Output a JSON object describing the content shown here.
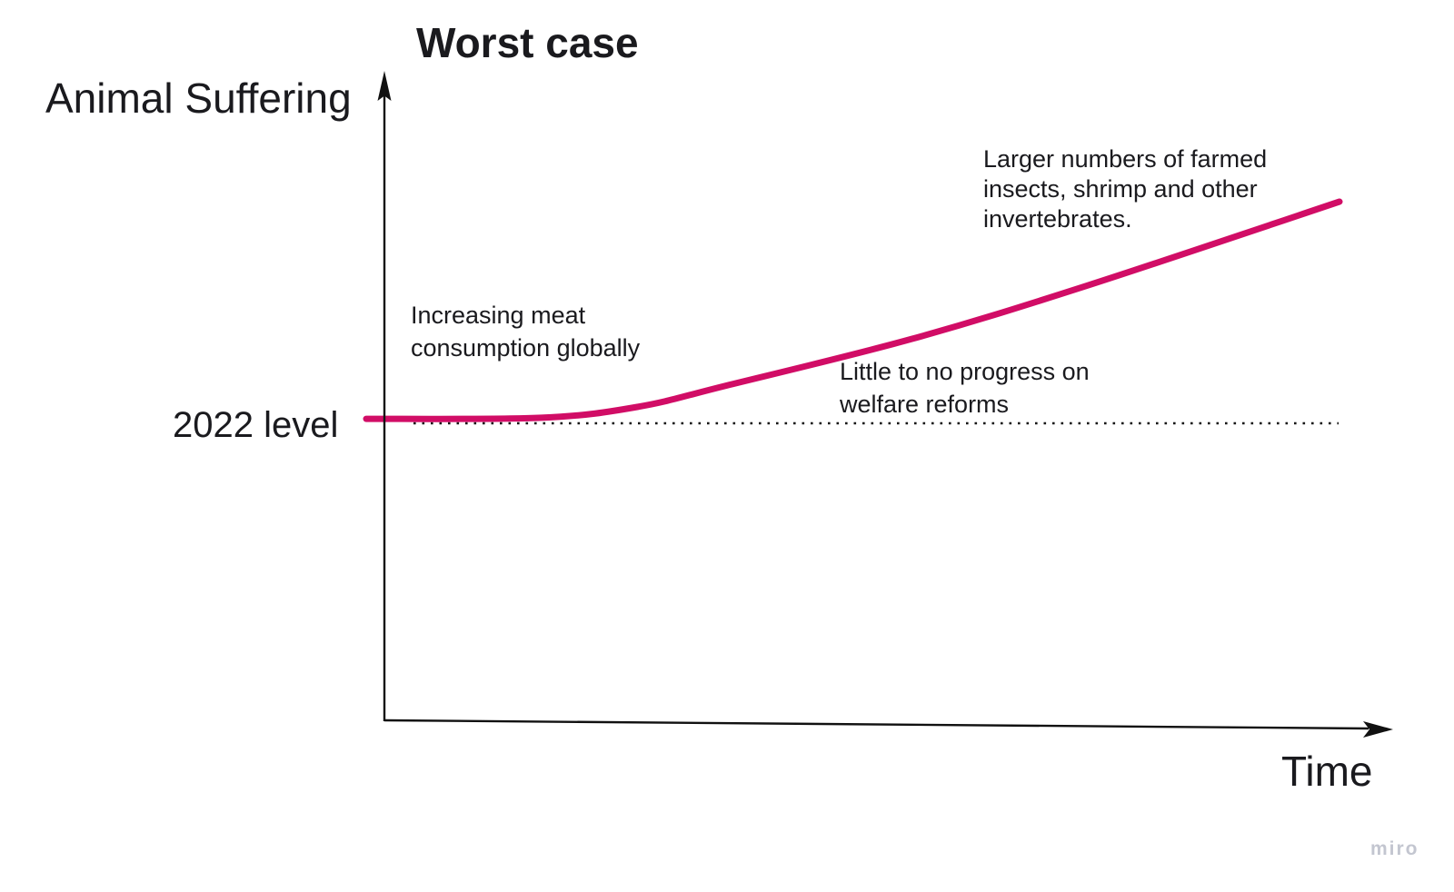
{
  "page": {
    "title": "Worst case",
    "y_axis_label": "Animal Suffering",
    "x_axis_label": "Time",
    "baseline_label": "2022 level",
    "watermark": "miro"
  },
  "annotations": {
    "meat": {
      "lines": [
        "Increasing meat",
        "consumption globally"
      ]
    },
    "welfare": {
      "lines": [
        "Little to no progress on",
        "welfare reforms"
      ]
    },
    "invertebrates": {
      "lines": [
        "Larger numbers of farmed",
        "insects, shrimp and other",
        "invertebrates."
      ]
    }
  },
  "colors": {
    "curve": "#d10d66",
    "axis": "#111111",
    "dotted_line": "#161616",
    "text": "#1a1a1e",
    "watermark": "#c3c6d0"
  },
  "chart_data": {
    "type": "line",
    "title": "Worst case",
    "xlabel": "Time",
    "ylabel": "Animal Suffering",
    "grid": false,
    "legend": false,
    "x_axis": {
      "ticks": "none",
      "description": "conceptual time axis starting at 2022, arrowhead pointing right"
    },
    "y_axis": {
      "ticks": "none",
      "description": "conceptual animal-suffering axis, arrowhead pointing up",
      "reference_line": {
        "label": "2022 level",
        "value": 1.0,
        "style": "dotted horizontal"
      }
    },
    "series": [
      {
        "name": "Animal suffering - worst case",
        "color": "#d10d66",
        "shape": "convex accelerating growth starting flat at the 2022 level",
        "x_time_fraction": [
          0,
          0.18,
          0.28,
          0.37,
          0.56,
          0.74,
          1.0
        ],
        "y_relative_to_2022": [
          1.04,
          1.05,
          1.15,
          1.34,
          1.76,
          2.24,
          3.0
        ]
      }
    ],
    "annotations": [
      "Increasing meat consumption globally",
      "Little to no progress on welfare reforms",
      "Larger numbers of farmed insects, shrimp and other invertebrates."
    ]
  }
}
